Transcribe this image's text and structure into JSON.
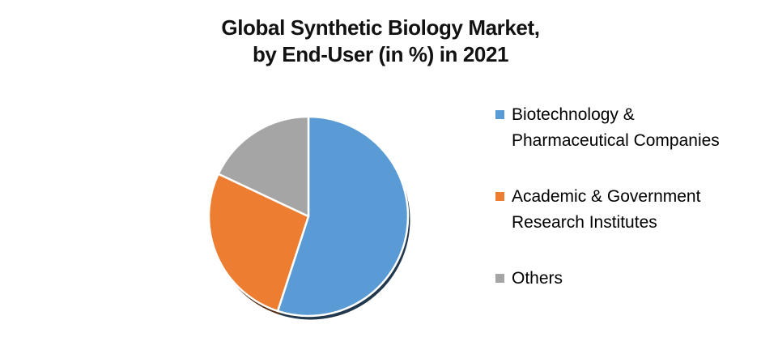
{
  "title_display": "Global Synthetic Biology Market,\nby End-User (in %) in 2021",
  "chart_data": {
    "type": "pie",
    "title": "Global Synthetic Biology Market, by End-User (in %) in 2021",
    "labels": [
      "Biotechnology & Pharmaceutical Companies",
      "Academic & Government Research Institutes",
      "Others"
    ],
    "values": [
      55,
      27,
      18
    ],
    "values_note": "estimated from slice angles; no data labels shown in chart",
    "colors": [
      "#5B9BD5",
      "#ED7D31",
      "#A5A5A5"
    ],
    "slice_border_color": "#FFFFFF",
    "background_color": "#FFFFFF",
    "start_angle_deg": 0,
    "direction": "clockwise",
    "legend_position": "right",
    "data_labels_shown": false
  }
}
